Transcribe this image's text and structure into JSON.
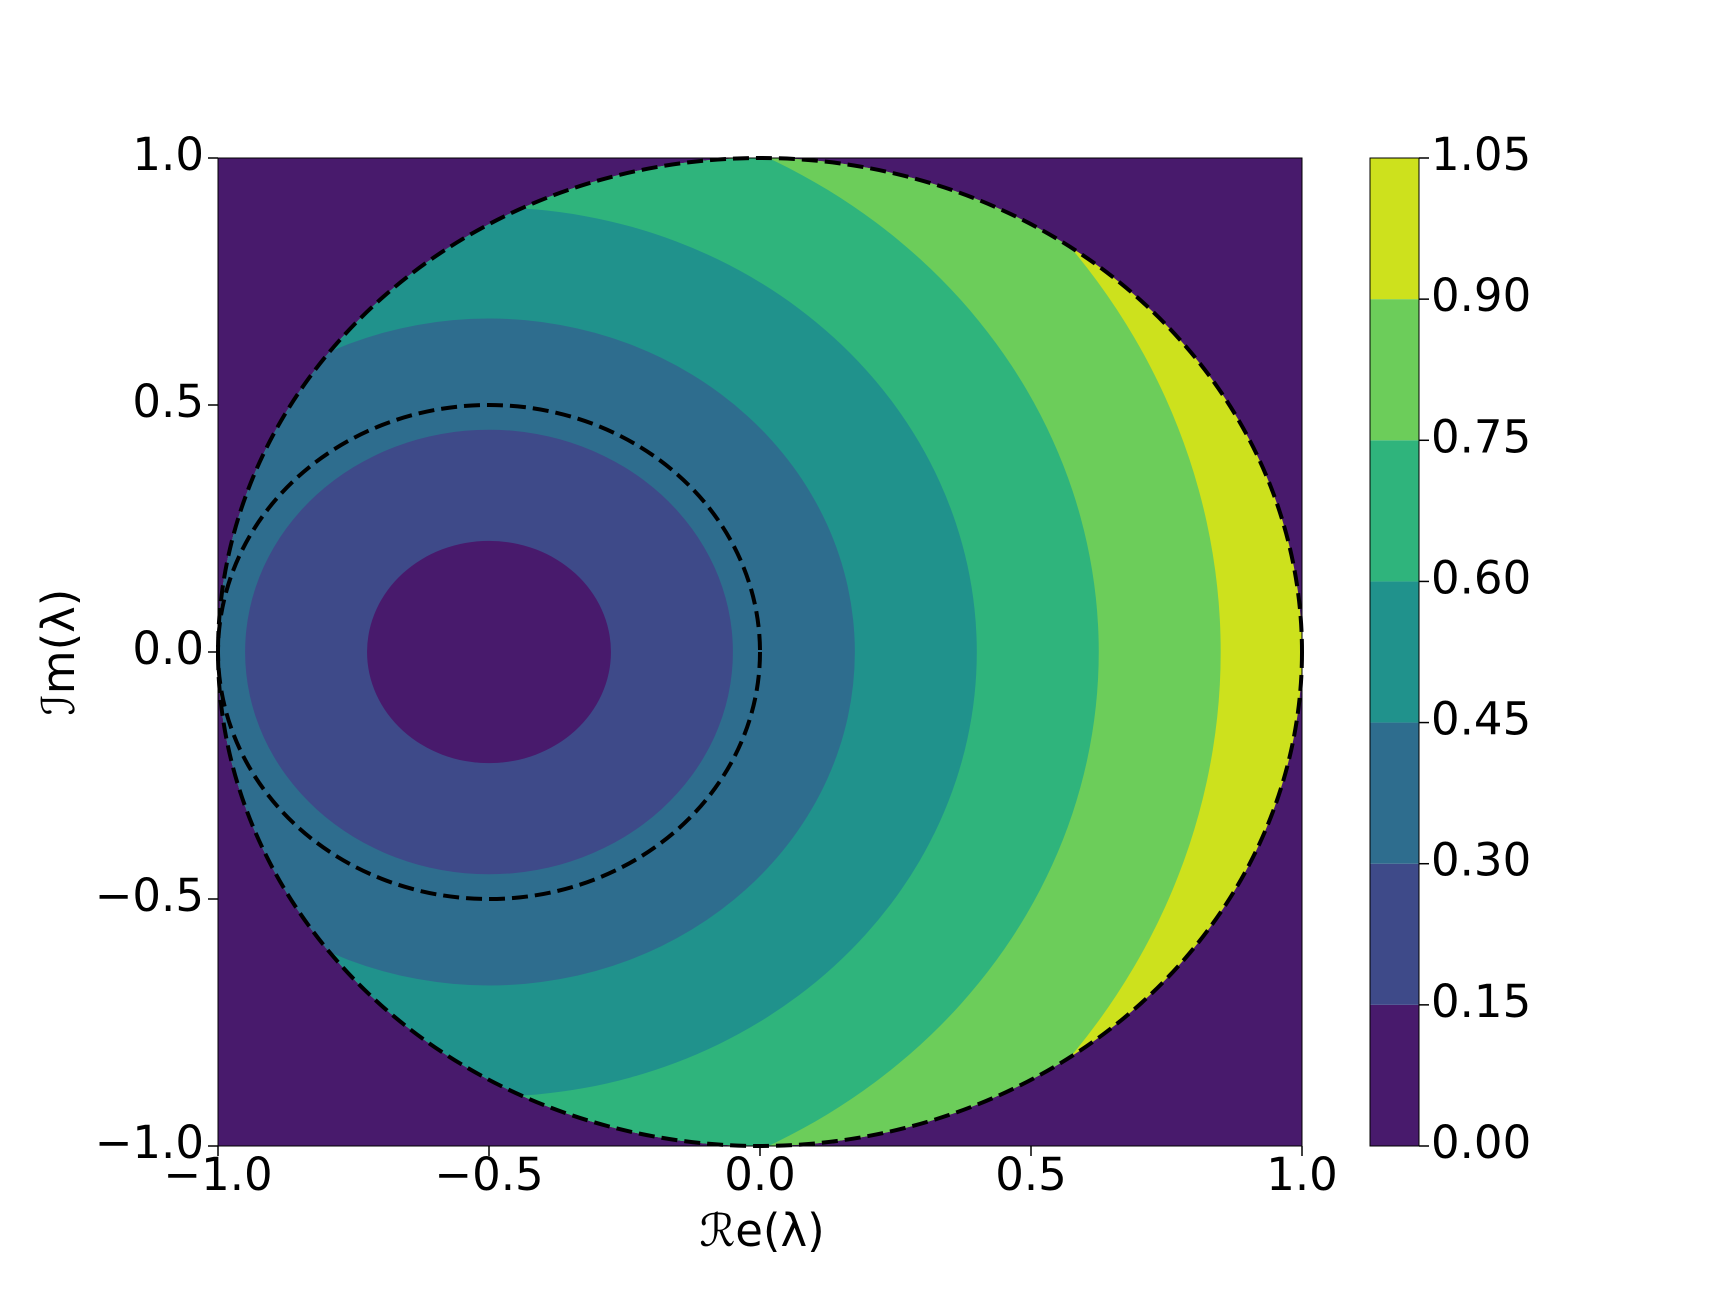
{
  "chart_data": {
    "type": "contour",
    "xlabel": "ℛe(λ)",
    "ylabel": "ℐm(λ)",
    "xlim": [
      -1,
      1
    ],
    "ylim": [
      -1,
      1
    ],
    "xticks": [
      {
        "value": -1,
        "label": "−1.0"
      },
      {
        "value": -0.5,
        "label": "−0.5"
      },
      {
        "value": 0,
        "label": "0.0"
      },
      0.5,
      {
        "value": 1,
        "label": "1.0"
      }
    ],
    "yticks": [
      {
        "value": -1,
        "label": "−1.0"
      },
      {
        "value": -0.5,
        "label": "−0.5"
      },
      {
        "value": 0,
        "label": "0.0"
      },
      0.5,
      {
        "value": 1,
        "label": "1.0"
      }
    ],
    "levels": [
      {
        "value": 0,
        "label": "0.00"
      },
      {
        "value": 0.15,
        "label": "0.15"
      },
      {
        "value": 0.3,
        "label": "0.30"
      },
      {
        "value": 0.45,
        "label": "0.45"
      },
      {
        "value": 0.6,
        "label": "0.60"
      },
      {
        "value": 0.75,
        "label": "0.75"
      },
      {
        "value": 0.9,
        "label": "0.90"
      },
      {
        "value": 1.05,
        "label": "1.05"
      }
    ],
    "colors": [
      "#481a6c",
      "#3e4a89",
      "#2e6d8e",
      "#20928c",
      "#2fb47c",
      "#6ccd5a",
      "#cde11d"
    ],
    "contour_center": [
      -0.5,
      0
    ],
    "contour_radii": [
      0.225,
      0.45,
      0.675,
      0.9,
      1.125,
      1.35
    ],
    "circles": [
      {
        "center": [
          0,
          0
        ],
        "radius": 1
      },
      {
        "center": [
          -0.5,
          0
        ],
        "radius": 0.5
      }
    ]
  }
}
